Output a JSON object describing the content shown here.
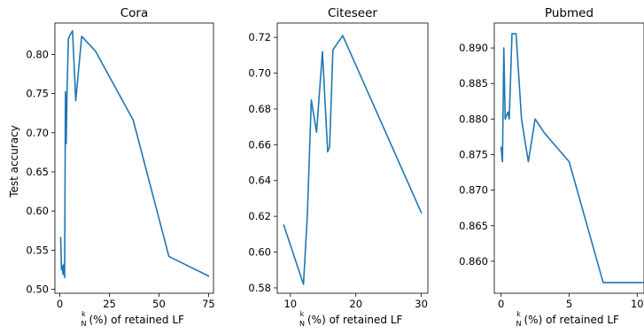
{
  "figure": {
    "ylabel": "Test accuracy",
    "xlabel_frac_top": "k",
    "xlabel_frac_bottom": "N",
    "xlabel_rest": "(%) of retained LF"
  },
  "chart_data": [
    {
      "type": "line",
      "title": "Cora",
      "xlabel": "k/N (%) of retained LF",
      "ylabel": "Test accuracy",
      "xlim": [
        -2.5,
        77.5
      ],
      "ylim": [
        0.495,
        0.84
      ],
      "xticks": [
        0,
        25,
        50,
        75
      ],
      "xtick_labels": [
        "0",
        "25",
        "50",
        "75"
      ],
      "yticks": [
        0.5,
        0.55,
        0.6,
        0.65,
        0.7,
        0.75,
        0.8
      ],
      "ytick_labels": [
        "0.50",
        "0.55",
        "0.60",
        "0.65",
        "0.70",
        "0.75",
        "0.80"
      ],
      "series": [
        {
          "color": "#1f77b4",
          "x": [
            0.4,
            0.8,
            1.2,
            1.6,
            2.0,
            2.4,
            2.8,
            3.2,
            3.6,
            4.3,
            5.2,
            6.4,
            8.0,
            11.0,
            18.0,
            37.0,
            55.0,
            75.0
          ],
          "y": [
            0.566,
            0.525,
            0.53,
            0.519,
            0.532,
            0.515,
            0.752,
            0.686,
            0.752,
            0.82,
            0.825,
            0.83,
            0.741,
            0.823,
            0.804,
            0.716,
            0.542,
            0.517
          ]
        }
      ]
    },
    {
      "type": "line",
      "title": "Citeseer",
      "xlabel": "k/N (%) of retained LF",
      "ylabel": "",
      "xlim": [
        8.0,
        31.0
      ],
      "ylim": [
        0.577,
        0.728
      ],
      "xticks": [
        10,
        20,
        30
      ],
      "xtick_labels": [
        "10",
        "20",
        "30"
      ],
      "yticks": [
        0.58,
        0.6,
        0.62,
        0.64,
        0.66,
        0.68,
        0.7,
        0.72
      ],
      "ytick_labels": [
        "0.58",
        "0.60",
        "0.62",
        "0.64",
        "0.66",
        "0.68",
        "0.70",
        "0.72"
      ],
      "series": [
        {
          "color": "#1f77b4",
          "x": [
            9.0,
            12.0,
            12.6,
            13.2,
            14.0,
            14.9,
            15.7,
            16.0,
            16.5,
            18.0,
            30.0
          ],
          "y": [
            0.615,
            0.582,
            0.621,
            0.685,
            0.667,
            0.712,
            0.656,
            0.659,
            0.713,
            0.721,
            0.622
          ]
        }
      ]
    },
    {
      "type": "line",
      "title": "Pubmed",
      "xlabel": "k/N (%) of retained LF",
      "ylabel": "",
      "xlim": [
        -0.5,
        10.5
      ],
      "ylim": [
        0.8555,
        0.8935
      ],
      "xticks": [
        0,
        5,
        10
      ],
      "xtick_labels": [
        "0",
        "5",
        "10"
      ],
      "yticks": [
        0.86,
        0.865,
        0.87,
        0.875,
        0.88,
        0.885,
        0.89
      ],
      "ytick_labels": [
        "0.860",
        "0.865",
        "0.870",
        "0.875",
        "0.880",
        "0.885",
        "0.890"
      ],
      "series": [
        {
          "color": "#1f77b4",
          "x": [
            0.0,
            0.1,
            0.2,
            0.3,
            0.5,
            0.6,
            0.8,
            1.1,
            1.5,
            2.0,
            2.5,
            3.2,
            5.0,
            7.5,
            10.0,
            10.4
          ],
          "y": [
            0.876,
            0.874,
            0.89,
            0.88,
            0.881,
            0.88,
            0.892,
            0.892,
            0.88,
            0.874,
            0.88,
            0.878,
            0.874,
            0.857,
            0.857,
            0.857
          ]
        }
      ]
    }
  ]
}
